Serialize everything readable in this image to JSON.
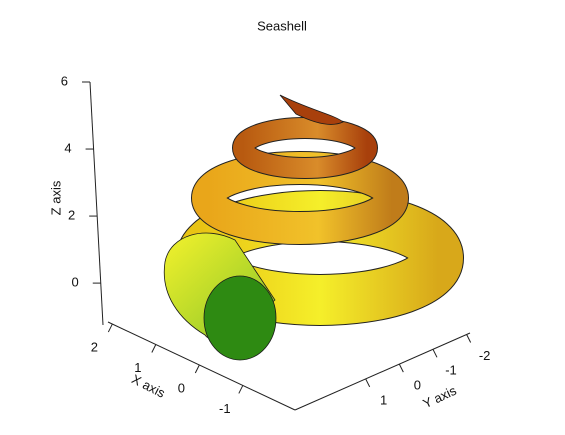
{
  "chart_data": {
    "type": "surface",
    "title": "Seashell",
    "xlabel": "X axis",
    "ylabel": "Y axis",
    "zlabel": "Z axis",
    "xlim": [
      2.1,
      -2.2
    ],
    "xticks": [
      2,
      1,
      0,
      -1
    ],
    "ylim": [
      3.1,
      -2.1
    ],
    "yticks": [
      1,
      0,
      -1,
      -2
    ],
    "zlim": [
      -1.25,
      6
    ],
    "zticks": [
      0,
      2,
      4,
      6
    ]
  }
}
